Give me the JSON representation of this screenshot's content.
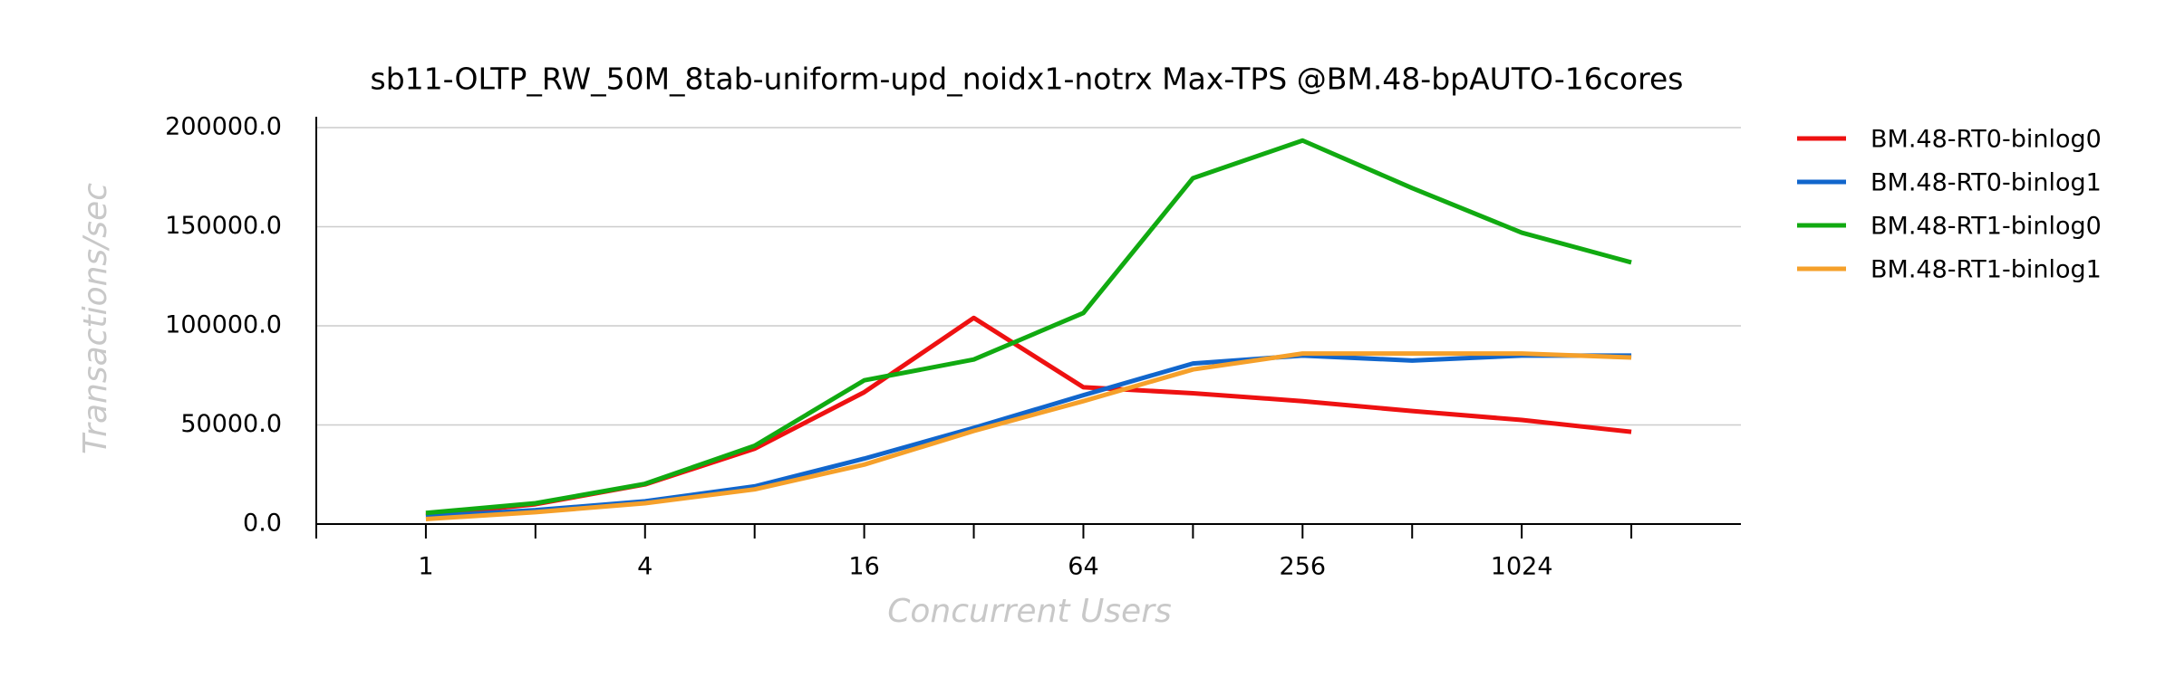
{
  "chart_data": {
    "type": "line",
    "title": "sb11-OLTP_RW_50M_8tab-uniform-upd_noidx1-notrx Max-TPS @BM.48-bpAUTO-16cores",
    "xlabel": "Concurrent Users",
    "ylabel": "Transactions/sec",
    "x": [
      1,
      2,
      4,
      8,
      16,
      32,
      64,
      128,
      256,
      512,
      1024,
      2048
    ],
    "xscale": "log2",
    "xlim": [
      0.5,
      4096
    ],
    "xticks": [
      1,
      4,
      16,
      64,
      256,
      1024
    ],
    "xminorticks": [
      0.5,
      2,
      8,
      32,
      128,
      512,
      2048
    ],
    "ylim": [
      0,
      200000
    ],
    "yticks": [
      {
        "value": 0,
        "label": "0.0"
      },
      {
        "value": 50000,
        "label": "50000.0"
      },
      {
        "value": 100000,
        "label": "100000.0"
      },
      {
        "value": 150000,
        "label": "150000.0"
      },
      {
        "value": 200000,
        "label": "200000.0"
      }
    ],
    "grid": true,
    "legend": "right",
    "series": [
      {
        "name": "BM.48-RT0-binlog0",
        "color": "#ee1111",
        "values": [
          4500,
          10000,
          20000,
          38000,
          66500,
          104000,
          69000,
          66000,
          62000,
          57000,
          52500,
          46500
        ]
      },
      {
        "name": "BM.48-RT0-binlog1",
        "color": "#1166cc",
        "values": [
          3800,
          7000,
          11500,
          19000,
          33000,
          48500,
          65000,
          81000,
          85000,
          82500,
          85000,
          85000
        ]
      },
      {
        "name": "BM.48-RT1-binlog0",
        "color": "#11aa11",
        "values": [
          5600,
          10500,
          20300,
          39500,
          72500,
          83000,
          106500,
          174500,
          193500,
          169500,
          147000,
          132000
        ]
      },
      {
        "name": "BM.48-RT1-binlog1",
        "color": "#f5a02a",
        "values": [
          2500,
          6000,
          10500,
          17500,
          30000,
          47000,
          62000,
          78000,
          86000,
          86000,
          86000,
          84000
        ]
      }
    ]
  }
}
